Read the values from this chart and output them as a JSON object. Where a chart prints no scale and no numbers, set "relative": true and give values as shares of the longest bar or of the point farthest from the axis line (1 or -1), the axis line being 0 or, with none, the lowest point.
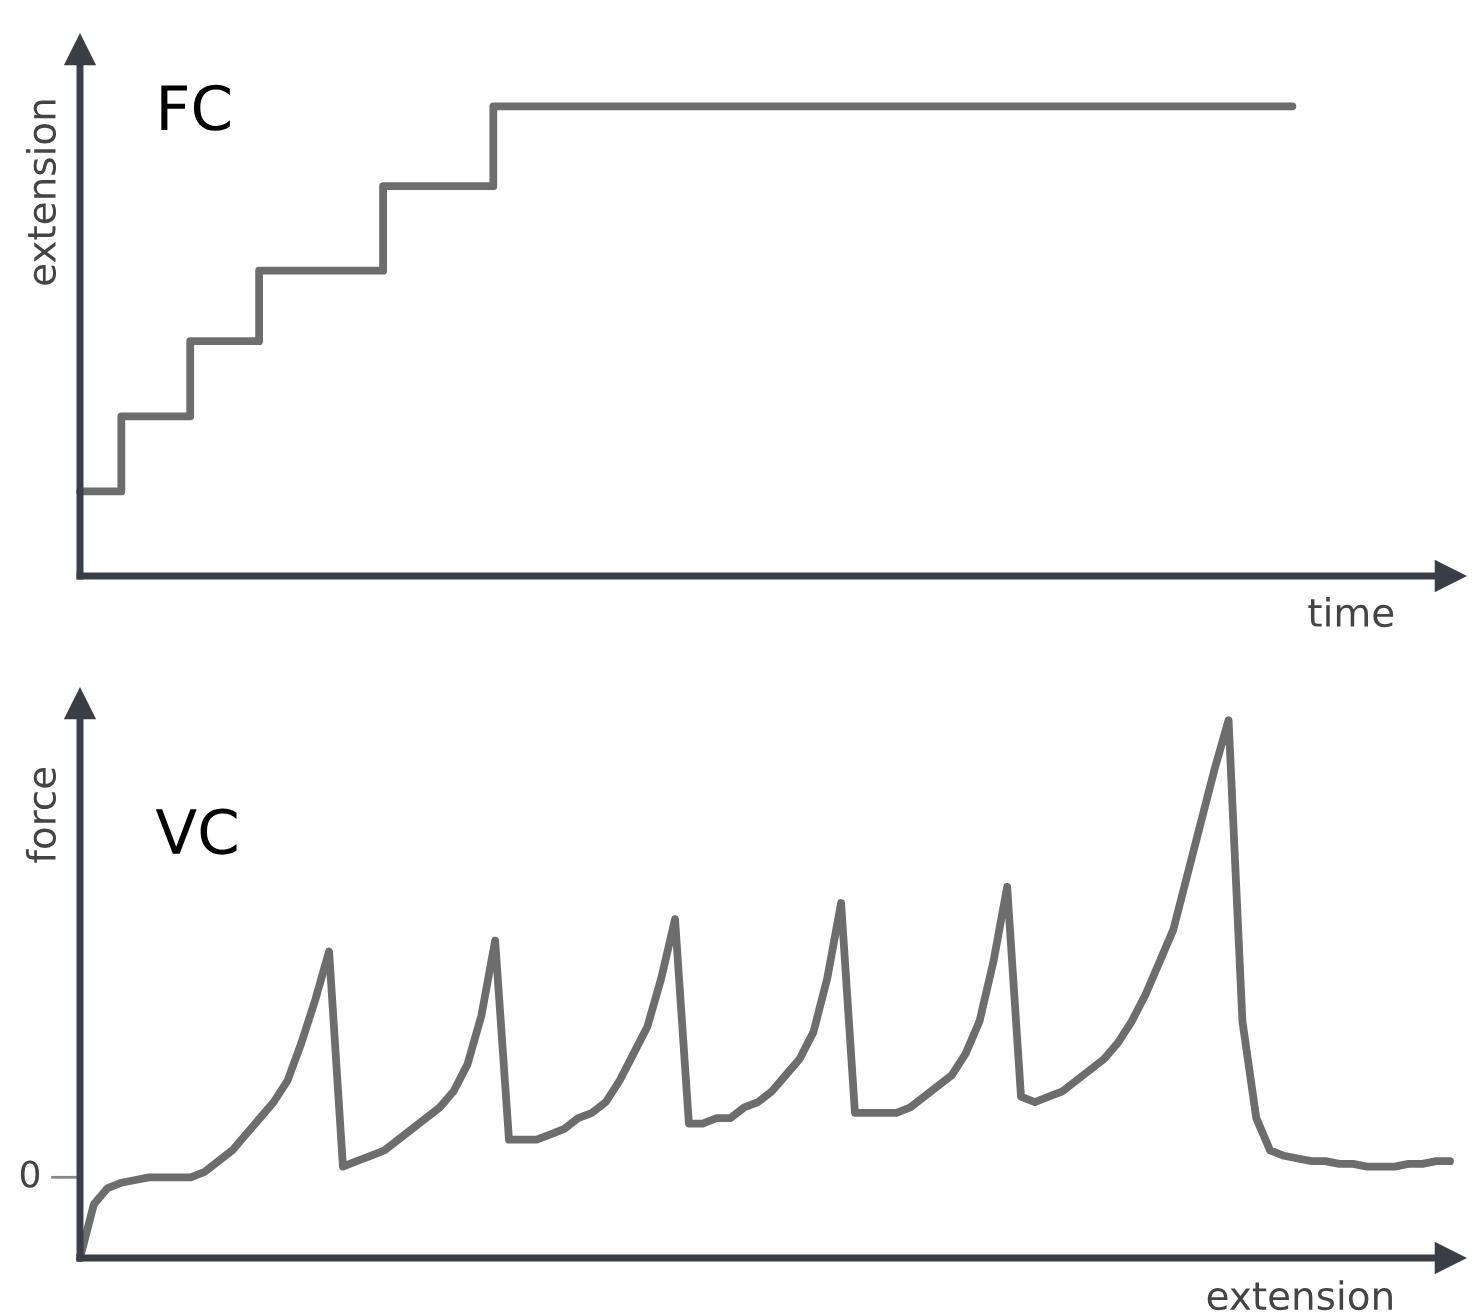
{
  "chart_data": [
    {
      "type": "step",
      "relative": true,
      "annotations": [
        "FC"
      ],
      "xlabel": "time",
      "ylabel": "extension",
      "categories": [
        null,
        null,
        null,
        null,
        null,
        null,
        null,
        null,
        null,
        null,
        null,
        null,
        null,
        null,
        null,
        null,
        null,
        null,
        null,
        null,
        null,
        null,
        null,
        null,
        null,
        null,
        null,
        null,
        null,
        null,
        null,
        null,
        null,
        null,
        null,
        null,
        null,
        null,
        null,
        null,
        null,
        null,
        null,
        null,
        null,
        null,
        null,
        null,
        null,
        null,
        null,
        null,
        null,
        null,
        null,
        null,
        null,
        null,
        null,
        null,
        null,
        null,
        null,
        null,
        null,
        null,
        null,
        null,
        null,
        null,
        null,
        null,
        null,
        null,
        null,
        null,
        null,
        null,
        null,
        null,
        null,
        null,
        null,
        null,
        null,
        null,
        null,
        null,
        null
      ],
      "series": [
        {
          "color": "#6d6d6d",
          "values": [
            0.18,
            0.18,
            0.18,
            0.34,
            0.34,
            0.34,
            0.34,
            0.34,
            0.5,
            0.5,
            0.5,
            0.5,
            0.5,
            0.65,
            0.65,
            0.65,
            0.65,
            0.65,
            0.65,
            0.65,
            0.65,
            0.65,
            0.83,
            0.83,
            0.83,
            0.83,
            0.83,
            0.83,
            0.83,
            0.83,
            1.0,
            1.0,
            1.0,
            1.0,
            1.0,
            1.0,
            1.0,
            1.0,
            1.0,
            1.0,
            1.0,
            1.0,
            1.0,
            1.0,
            1.0,
            1.0,
            1.0,
            1.0,
            1.0,
            1.0,
            1.0,
            1.0,
            1.0,
            1.0,
            1.0,
            1.0,
            1.0,
            1.0,
            1.0,
            1.0,
            1.0,
            1.0,
            1.0,
            1.0,
            1.0,
            1.0,
            1.0,
            1.0,
            1.0,
            1.0,
            1.0,
            1.0,
            1.0,
            1.0,
            1.0,
            1.0,
            1.0,
            1.0,
            1.0,
            1.0,
            1.0,
            1.0,
            1.0,
            1.0,
            1.0,
            1.0,
            1.0,
            1.0,
            1.0
          ]
        }
      ]
    },
    {
      "type": "line",
      "relative": true,
      "annotations": [
        "VC"
      ],
      "xlabel": "extension",
      "ylabel": "force",
      "ref_lines": [
        {
          "axis": "y",
          "value": 0.15,
          "label": "0"
        }
      ],
      "categories": [
        null,
        null,
        null,
        null,
        null,
        null,
        null,
        null,
        null,
        null,
        null,
        null,
        null,
        null,
        null,
        null,
        null,
        null,
        null,
        null,
        null,
        null,
        null,
        null,
        null,
        null,
        null,
        null,
        null,
        null,
        null,
        null,
        null,
        null,
        null,
        null,
        null,
        null,
        null,
        null,
        null,
        null,
        null,
        null,
        null,
        null,
        null,
        null,
        null,
        null,
        null,
        null,
        null,
        null,
        null,
        null,
        null,
        null,
        null,
        null,
        null,
        null,
        null,
        null,
        null,
        null,
        null,
        null,
        null,
        null,
        null,
        null,
        null,
        null,
        null,
        null,
        null,
        null,
        null,
        null,
        null,
        null,
        null,
        null,
        null,
        null,
        null,
        null,
        null,
        null,
        null,
        null,
        null,
        null,
        null,
        null,
        null,
        null,
        null,
        null
      ],
      "series": [
        {
          "color": "#6d6d6d",
          "values": [
            0,
            0.1,
            0.13,
            0.14,
            0.145,
            0.15,
            0.15,
            0.15,
            0.15,
            0.16,
            0.18,
            0.2,
            0.23,
            0.26,
            0.29,
            0.33,
            0.4,
            0.48,
            0.57,
            0.17,
            0.18,
            0.19,
            0.2,
            0.22,
            0.24,
            0.26,
            0.28,
            0.31,
            0.36,
            0.45,
            0.59,
            0.22,
            0.22,
            0.22,
            0.23,
            0.24,
            0.26,
            0.27,
            0.29,
            0.33,
            0.38,
            0.43,
            0.52,
            0.63,
            0.25,
            0.25,
            0.26,
            0.26,
            0.28,
            0.29,
            0.31,
            0.34,
            0.37,
            0.42,
            0.52,
            0.66,
            0.27,
            0.27,
            0.27,
            0.27,
            0.28,
            0.3,
            0.32,
            0.34,
            0.38,
            0.44,
            0.55,
            0.69,
            0.3,
            0.29,
            0.3,
            0.31,
            0.33,
            0.35,
            0.37,
            0.4,
            0.44,
            0.49,
            0.55,
            0.61,
            0.71,
            0.81,
            0.91,
            1.0,
            0.44,
            0.26,
            0.2,
            0.19,
            0.185,
            0.18,
            0.18,
            0.175,
            0.175,
            0.17,
            0.17,
            0.17,
            0.175,
            0.175,
            0.18,
            0.18
          ]
        }
      ]
    }
  ]
}
